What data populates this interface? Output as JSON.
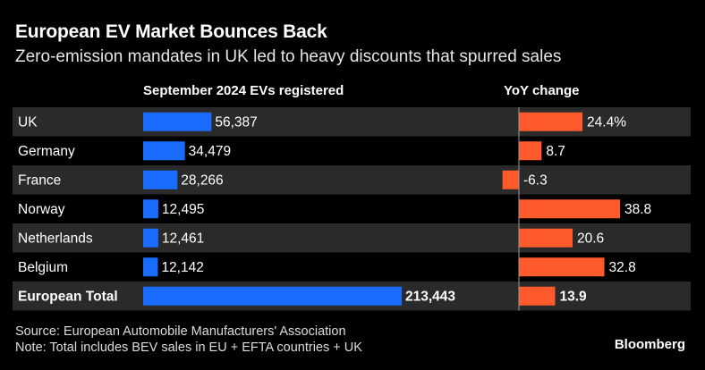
{
  "header": {
    "title": "European EV Market Bounces Back",
    "subtitle": "Zero-emission mandates in UK led to heavy discounts that spurred sales"
  },
  "chart_data": {
    "type": "table",
    "columns": [
      "September 2024 EVs registered",
      "YoY change"
    ],
    "rows": [
      {
        "label": "UK",
        "registered": 56387,
        "registered_label": "56,387",
        "yoy": 24.4,
        "yoy_label": "24.4%",
        "bold": false
      },
      {
        "label": "Germany",
        "registered": 34479,
        "registered_label": "34,479",
        "yoy": 8.7,
        "yoy_label": "8.7",
        "bold": false
      },
      {
        "label": "France",
        "registered": 28266,
        "registered_label": "28,266",
        "yoy": -6.3,
        "yoy_label": "-6.3",
        "bold": false
      },
      {
        "label": "Norway",
        "registered": 12495,
        "registered_label": "12,495",
        "yoy": 38.8,
        "yoy_label": "38.8",
        "bold": false
      },
      {
        "label": "Netherlands",
        "registered": 12461,
        "registered_label": "12,461",
        "yoy": 20.6,
        "yoy_label": "20.6",
        "bold": false
      },
      {
        "label": "Belgium",
        "registered": 12142,
        "registered_label": "12,142",
        "yoy": 32.8,
        "yoy_label": "32.8",
        "bold": false
      },
      {
        "label": "European Total",
        "registered": 213443,
        "registered_label": "213,443",
        "yoy": 13.9,
        "yoy_label": "13.9",
        "bold": true
      }
    ],
    "colors": {
      "registered": "#1a6cff",
      "yoy": "#ff5a2c",
      "row_band": "#2a2a2a",
      "background": "#000000"
    }
  },
  "footer": {
    "source": "Source: European Automobile Manufacturers' Association",
    "note": "Note: Total includes BEV sales in EU + EFTA countries + UK",
    "brand": "Bloomberg"
  }
}
